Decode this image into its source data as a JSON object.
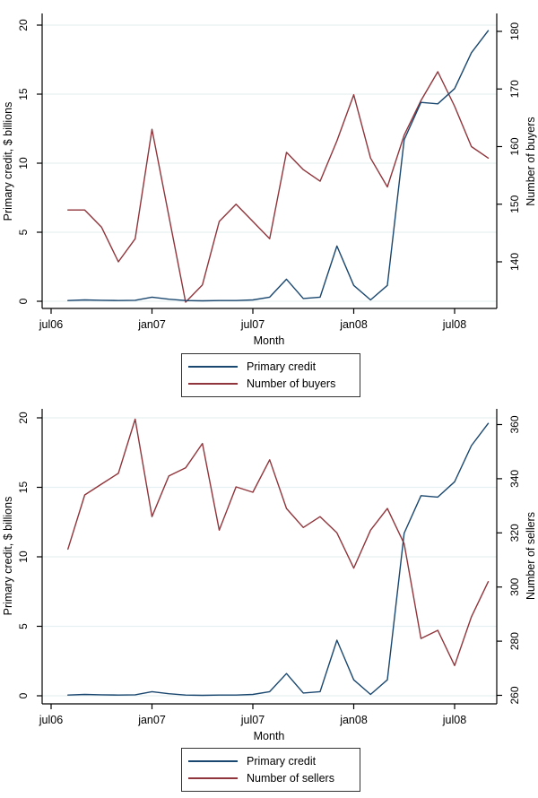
{
  "colors": {
    "primary_credit": "#1a476f",
    "counterparty_red": "#90353b",
    "grid": "#e6eff1",
    "axis": "#000000",
    "text": "#000000",
    "legend_border": "#333333",
    "background": "#ffffff"
  },
  "chart_data": [
    {
      "type": "line",
      "title": "",
      "xlabel": "Month",
      "ylabel_left": "Primary credit, $ billions",
      "ylabel_right": "Number of buyers",
      "grid": true,
      "legend_position": "below",
      "x_categories": [
        "aug06",
        "sep06",
        "oct06",
        "nov06",
        "dec06",
        "jan07",
        "feb07",
        "mar07",
        "apr07",
        "may07",
        "jun07",
        "jul07",
        "aug07",
        "sep07",
        "oct07",
        "nov07",
        "dec07",
        "jan08",
        "feb08",
        "mar08",
        "apr08",
        "may08",
        "jun08",
        "jul08",
        "aug08",
        "sep08"
      ],
      "x_first_point_offset": 1,
      "x_ticks": [
        {
          "label": "jul06",
          "pos": 0
        },
        {
          "label": "jan07",
          "pos": 6
        },
        {
          "label": "jul07",
          "pos": 12
        },
        {
          "label": "jan08",
          "pos": 18
        },
        {
          "label": "jul08",
          "pos": 24
        }
      ],
      "y_left_ticks": [
        0,
        5,
        10,
        15,
        20
      ],
      "y_left_range": [
        0,
        20
      ],
      "y_right_ticks": [
        140,
        150,
        160,
        170,
        180
      ],
      "y_right_range": [
        140,
        180
      ],
      "series": [
        {
          "name": "Number of buyers",
          "axis": "right",
          "color": "#90353b",
          "values": [
            149,
            149,
            146,
            140,
            144,
            163,
            148,
            133,
            136,
            147,
            150,
            147,
            144,
            159,
            156,
            154,
            161,
            169,
            158,
            153,
            162,
            168,
            173,
            167,
            160,
            158
          ]
        },
        {
          "name": "Primary credit",
          "axis": "left",
          "color": "#1a476f",
          "values": [
            0.05,
            0.1,
            0.07,
            0.05,
            0.07,
            0.3,
            0.15,
            0.05,
            0.03,
            0.05,
            0.05,
            0.1,
            0.3,
            1.6,
            0.2,
            0.3,
            4.0,
            1.15,
            0.1,
            1.15,
            11.7,
            14.4,
            14.3,
            15.4,
            18.0,
            19.6
          ]
        }
      ],
      "legend": {
        "items": [
          {
            "label": "Primary credit",
            "color": "#1a476f"
          },
          {
            "label": "Number of buyers",
            "color": "#90353b"
          }
        ]
      }
    },
    {
      "type": "line",
      "title": "",
      "xlabel": "Month",
      "ylabel_left": "Primary credit, $ billions",
      "ylabel_right": "Number of sellers",
      "grid": true,
      "legend_position": "below",
      "x_categories": [
        "aug06",
        "sep06",
        "oct06",
        "nov06",
        "dec06",
        "jan07",
        "feb07",
        "mar07",
        "apr07",
        "may07",
        "jun07",
        "jul07",
        "aug07",
        "sep07",
        "oct07",
        "nov07",
        "dec07",
        "jan08",
        "feb08",
        "mar08",
        "apr08",
        "may08",
        "jun08",
        "jul08",
        "aug08",
        "sep08"
      ],
      "x_first_point_offset": 1,
      "x_ticks": [
        {
          "label": "jul06",
          "pos": 0
        },
        {
          "label": "jan07",
          "pos": 6
        },
        {
          "label": "jul07",
          "pos": 12
        },
        {
          "label": "jan08",
          "pos": 18
        },
        {
          "label": "jul08",
          "pos": 24
        }
      ],
      "y_left_ticks": [
        0,
        5,
        10,
        15,
        20
      ],
      "y_left_range": [
        0,
        20
      ],
      "y_right_ticks": [
        260,
        280,
        300,
        320,
        340,
        360
      ],
      "y_right_range": [
        260,
        360
      ],
      "series": [
        {
          "name": "Number of sellers",
          "axis": "right",
          "color": "#90353b",
          "values": [
            314,
            334,
            338,
            342,
            362,
            326,
            341,
            344,
            353,
            321,
            337,
            335,
            347,
            329,
            322,
            326,
            320,
            307,
            321,
            329,
            316,
            281,
            284,
            271,
            289,
            302
          ]
        },
        {
          "name": "Primary credit",
          "axis": "left",
          "color": "#1a476f",
          "values": [
            0.05,
            0.1,
            0.07,
            0.05,
            0.07,
            0.3,
            0.15,
            0.05,
            0.03,
            0.05,
            0.05,
            0.1,
            0.3,
            1.6,
            0.2,
            0.3,
            4.0,
            1.15,
            0.1,
            1.15,
            11.7,
            14.4,
            14.3,
            15.4,
            18.0,
            19.6
          ]
        }
      ],
      "legend": {
        "items": [
          {
            "label": "Primary credit",
            "color": "#1a476f"
          },
          {
            "label": "Number of sellers",
            "color": "#90353b"
          }
        ]
      }
    }
  ]
}
